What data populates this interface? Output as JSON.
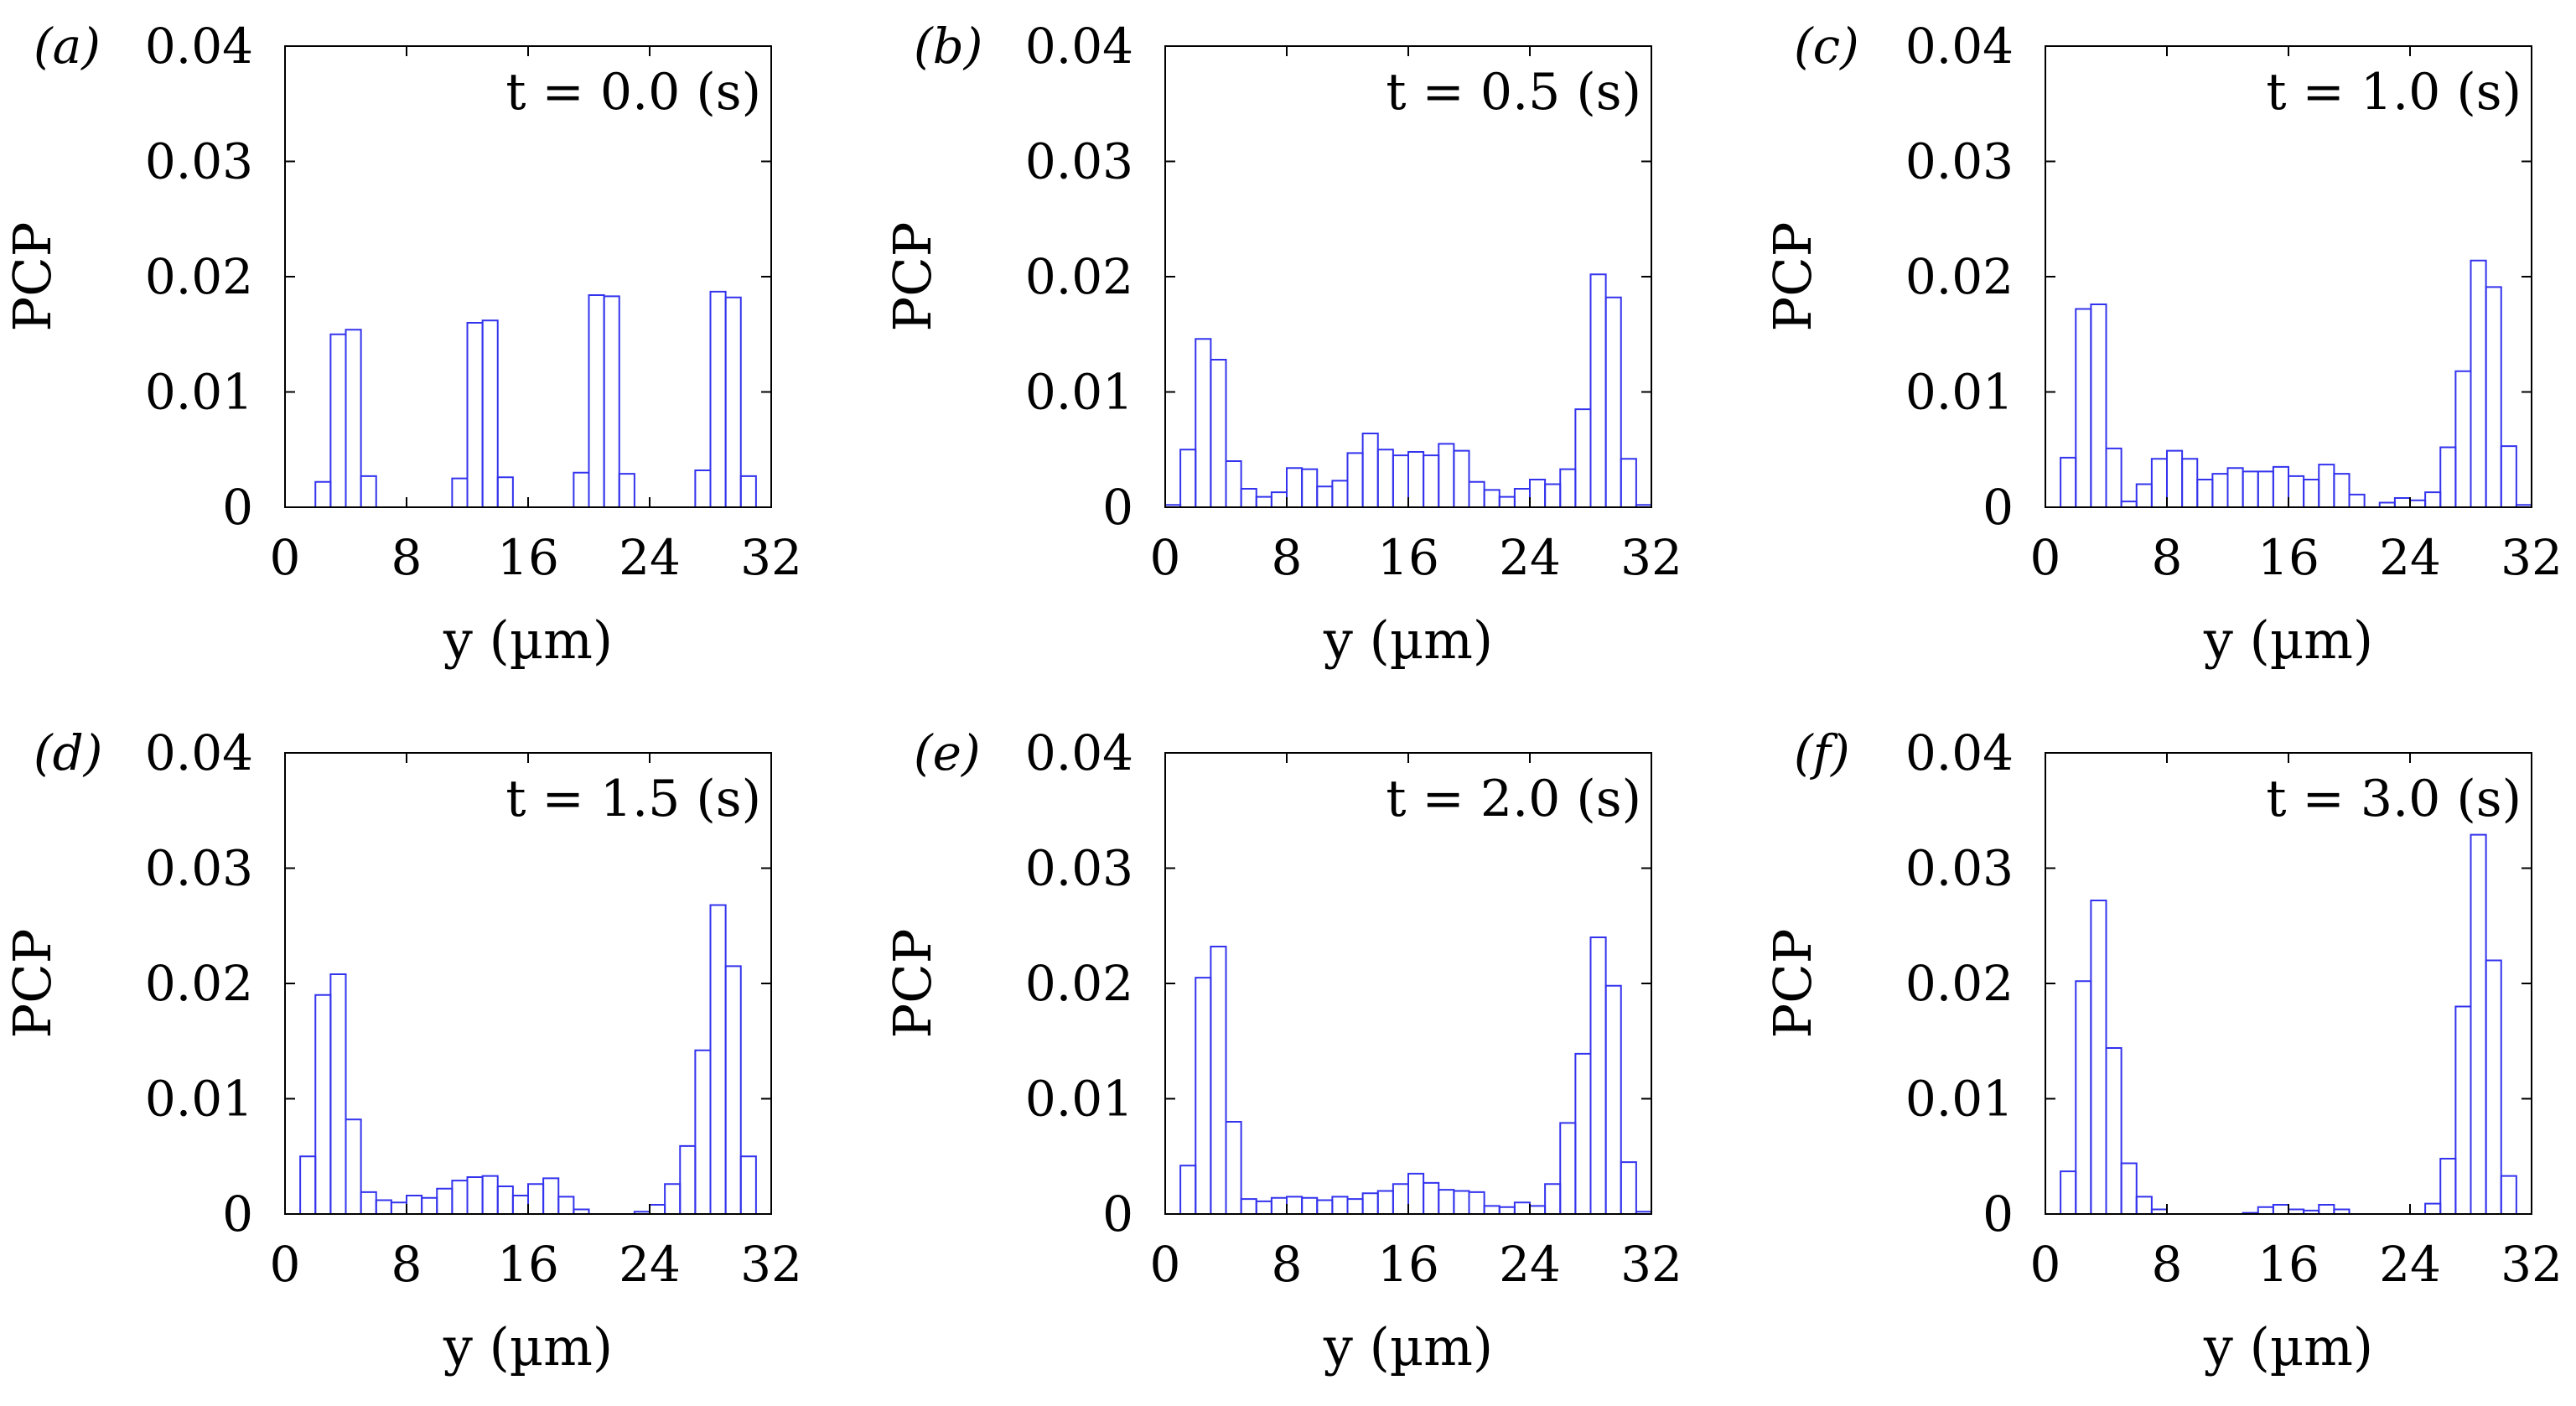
{
  "chart_data": [
    {
      "panel_label": "(a)",
      "annotation": "t = 0.0 (s)",
      "type": "bar",
      "xlabel": "y (µm)",
      "ylabel": "PCP",
      "xlim": [
        0,
        32
      ],
      "ylim": [
        0,
        0.04
      ],
      "xticks": [
        "0",
        "8",
        "16",
        "24",
        "32"
      ],
      "yticks": [
        "0",
        "0.01",
        "0.02",
        "0.03",
        "0.04"
      ],
      "bin_width": 1,
      "values": [
        0,
        0,
        0.0022,
        0.015,
        0.0154,
        0.0027,
        0,
        0,
        0,
        0,
        0,
        0.0025,
        0.016,
        0.0162,
        0.0026,
        0,
        0,
        0,
        0,
        0.003,
        0.0184,
        0.0183,
        0.0029,
        0,
        0,
        0,
        0,
        0.0032,
        0.0187,
        0.0182,
        0.0027,
        0
      ]
    },
    {
      "panel_label": "(b)",
      "annotation": "t = 0.5 (s)",
      "type": "bar",
      "xlabel": "y (µm)",
      "ylabel": "PCP",
      "xlim": [
        0,
        32
      ],
      "ylim": [
        0,
        0.04
      ],
      "xticks": [
        "0",
        "8",
        "16",
        "24",
        "32"
      ],
      "yticks": [
        "0",
        "0.01",
        "0.02",
        "0.03",
        "0.04"
      ],
      "bin_width": 1,
      "values": [
        0.0002,
        0.005,
        0.0146,
        0.0128,
        0.004,
        0.0016,
        0.0009,
        0.0013,
        0.0034,
        0.0033,
        0.0018,
        0.0023,
        0.0047,
        0.0064,
        0.005,
        0.0045,
        0.0048,
        0.0045,
        0.0055,
        0.0049,
        0.0022,
        0.0015,
        0.0009,
        0.0016,
        0.0024,
        0.002,
        0.0033,
        0.0085,
        0.0202,
        0.0182,
        0.0042,
        0.0002
      ]
    },
    {
      "panel_label": "(c)",
      "annotation": "t = 1.0 (s)",
      "type": "bar",
      "xlabel": "y (µm)",
      "ylabel": "PCP",
      "xlim": [
        0,
        32
      ],
      "ylim": [
        0,
        0.04
      ],
      "xticks": [
        "0",
        "8",
        "16",
        "24",
        "32"
      ],
      "yticks": [
        "0",
        "0.01",
        "0.02",
        "0.03",
        "0.04"
      ],
      "bin_width": 1,
      "values": [
        0,
        0.0043,
        0.0172,
        0.0176,
        0.0051,
        0.0005,
        0.002,
        0.0042,
        0.0049,
        0.0042,
        0.0024,
        0.0029,
        0.0034,
        0.0031,
        0.0031,
        0.0035,
        0.0027,
        0.0024,
        0.0037,
        0.0029,
        0.0011,
        0,
        0.0004,
        0.0008,
        0.0006,
        0.0013,
        0.0052,
        0.0118,
        0.0214,
        0.0191,
        0.0053,
        0.0002
      ]
    },
    {
      "panel_label": "(d)",
      "annotation": "t = 1.5 (s)",
      "type": "bar",
      "xlabel": "y (µm)",
      "ylabel": "PCP",
      "xlim": [
        0,
        32
      ],
      "ylim": [
        0,
        0.04
      ],
      "xticks": [
        "0",
        "8",
        "16",
        "24",
        "32"
      ],
      "yticks": [
        "0",
        "0.01",
        "0.02",
        "0.03",
        "0.04"
      ],
      "bin_width": 1,
      "values": [
        0,
        0.005,
        0.019,
        0.0208,
        0.0082,
        0.0019,
        0.0012,
        0.001,
        0.0016,
        0.0014,
        0.0022,
        0.0029,
        0.0032,
        0.0033,
        0.0024,
        0.0016,
        0.0026,
        0.0031,
        0.0015,
        0.0004,
        0,
        0,
        0,
        0.0002,
        0.0008,
        0.0026,
        0.0059,
        0.0142,
        0.0268,
        0.0215,
        0.005,
        0
      ]
    },
    {
      "panel_label": "(e)",
      "annotation": "t = 2.0 (s)",
      "type": "bar",
      "xlabel": "y (µm)",
      "ylabel": "PCP",
      "xlim": [
        0,
        32
      ],
      "ylim": [
        0,
        0.04
      ],
      "xticks": [
        "0",
        "8",
        "16",
        "24",
        "32"
      ],
      "yticks": [
        "0",
        "0.01",
        "0.02",
        "0.03",
        "0.04"
      ],
      "bin_width": 1,
      "values": [
        0,
        0.0042,
        0.0205,
        0.0232,
        0.008,
        0.0013,
        0.0011,
        0.0014,
        0.0015,
        0.0014,
        0.0012,
        0.0015,
        0.0013,
        0.0018,
        0.002,
        0.0026,
        0.0035,
        0.0027,
        0.0021,
        0.002,
        0.0019,
        0.0007,
        0.0006,
        0.001,
        0.0007,
        0.0026,
        0.0079,
        0.0139,
        0.024,
        0.0198,
        0.0045,
        0.0002
      ]
    },
    {
      "panel_label": "(f)",
      "annotation": "t = 3.0 (s)",
      "type": "bar",
      "xlabel": "y (µm)",
      "ylabel": "PCP",
      "xlim": [
        0,
        32
      ],
      "ylim": [
        0,
        0.04
      ],
      "xticks": [
        "0",
        "8",
        "16",
        "24",
        "32"
      ],
      "yticks": [
        "0",
        "0.01",
        "0.02",
        "0.03",
        "0.04"
      ],
      "bin_width": 1,
      "values": [
        0,
        0.0037,
        0.0202,
        0.0272,
        0.0144,
        0.0044,
        0.0015,
        0.0004,
        0,
        0,
        0,
        0,
        0,
        0.0001,
        0.0006,
        0.0008,
        0.0004,
        0.0003,
        0.0008,
        0.0004,
        0,
        0,
        0,
        0,
        0,
        0.0009,
        0.0048,
        0.018,
        0.0329,
        0.022,
        0.0033,
        0
      ]
    }
  ],
  "style": {
    "bar_color": "#3333ee",
    "axis_color": "#000000"
  }
}
